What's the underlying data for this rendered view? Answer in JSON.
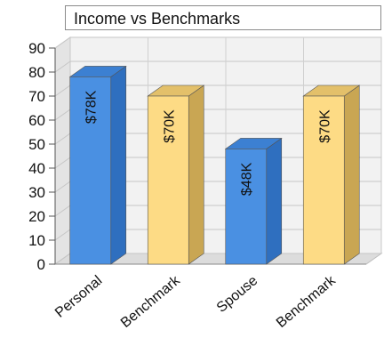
{
  "chart_data": {
    "type": "bar",
    "title": "Income vs Benchmarks",
    "categories": [
      "Personal",
      "Benchmark",
      "Spouse",
      "Benchmark"
    ],
    "values": [
      78,
      70,
      48,
      70
    ],
    "data_labels": [
      "$78K",
      "$70K",
      "$48K",
      "$70K"
    ],
    "yticks": [
      0,
      10,
      20,
      30,
      40,
      50,
      60,
      70,
      80,
      90
    ],
    "ylim": [
      0,
      90
    ],
    "grid": true,
    "bar_colors": {
      "front": [
        "#4a90e2",
        "#fddb85",
        "#4a90e2",
        "#fddb85"
      ],
      "side": [
        "#2f6fbf",
        "#c9a653",
        "#2f6fbf",
        "#c9a653"
      ],
      "top": [
        "#3c80d2",
        "#e3c06a",
        "#3c80d2",
        "#e3c06a"
      ]
    }
  }
}
